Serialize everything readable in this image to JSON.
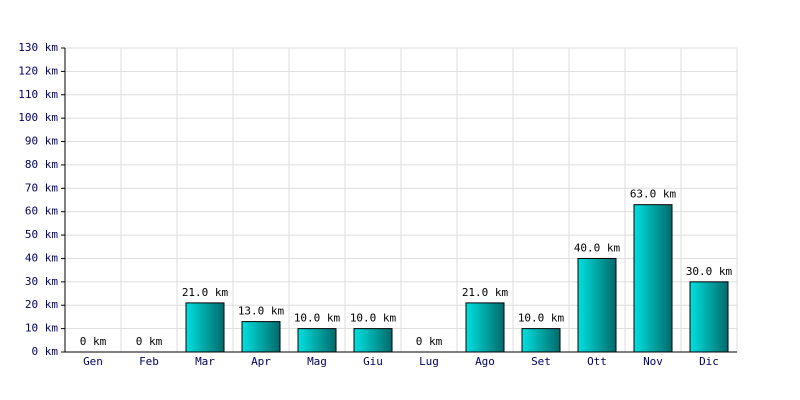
{
  "chart_data": {
    "type": "bar",
    "categories": [
      "Gen",
      "Feb",
      "Mar",
      "Apr",
      "Mag",
      "Giu",
      "Lug",
      "Ago",
      "Set",
      "Ott",
      "Nov",
      "Dic"
    ],
    "values": [
      0,
      0,
      21,
      13,
      10,
      10,
      0,
      21,
      10,
      40,
      63,
      30
    ],
    "value_labels": [
      "0 km",
      "0 km",
      "21.0 km",
      "13.0 km",
      "10.0 km",
      "10.0 km",
      "0 km",
      "21.0 km",
      "10.0 km",
      "40.0 km",
      "63.0 km",
      "30.0 km"
    ],
    "color": "#00e0e0",
    "ylim": [
      0,
      130
    ],
    "yticks": [
      {
        "value": 0,
        "label": "0 km"
      },
      {
        "value": 10,
        "label": "10 km"
      },
      {
        "value": 20,
        "label": "20 km"
      },
      {
        "value": 30,
        "label": "30 km"
      },
      {
        "value": 40,
        "label": "40 km"
      },
      {
        "value": 50,
        "label": "50 km"
      },
      {
        "value": 60,
        "label": "60 km"
      },
      {
        "value": 70,
        "label": "70 km"
      },
      {
        "value": 80,
        "label": "80 km"
      },
      {
        "value": 90,
        "label": "90 km"
      },
      {
        "value": 100,
        "label": "100 km"
      },
      {
        "value": 110,
        "label": "110 km"
      },
      {
        "value": 120,
        "label": "120 km"
      },
      {
        "value": 130,
        "label": "130 km"
      }
    ],
    "grid": true
  }
}
